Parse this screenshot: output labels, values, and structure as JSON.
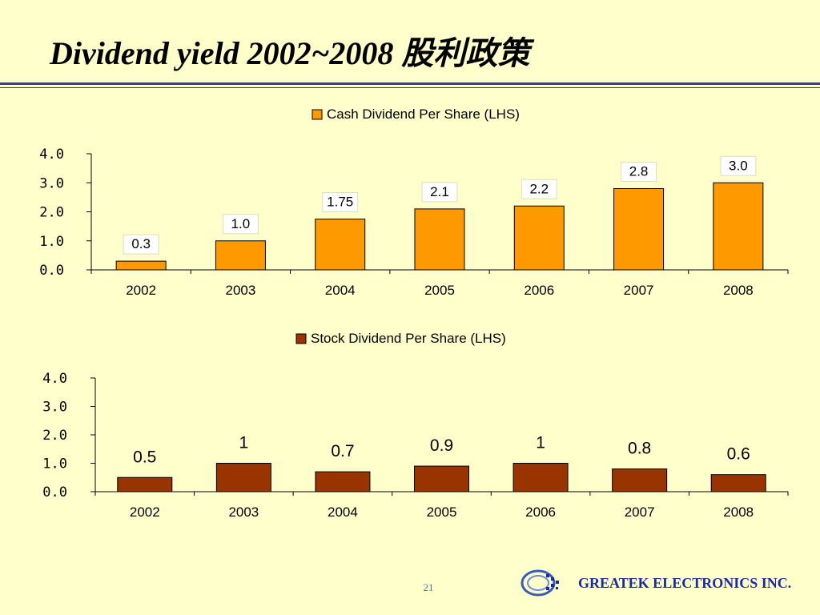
{
  "title": "Dividend yield 2002~2008  股利政策",
  "page_number": "21",
  "company": "GREATEK ELECTRONICS INC.",
  "chart_data": [
    {
      "type": "bar",
      "title": "",
      "legend": [
        "Cash Dividend Per Share (LHS)"
      ],
      "legend_placement": "top-center",
      "categories": [
        "2002",
        "2003",
        "2004",
        "2005",
        "2006",
        "2007",
        "2008"
      ],
      "series": [
        {
          "name": "Cash Dividend Per Share (LHS)",
          "values": [
            0.3,
            1.0,
            1.75,
            2.1,
            2.2,
            2.8,
            3.0
          ],
          "color": "#FF9900"
        }
      ],
      "data_labels": [
        "0.3",
        "1.0",
        "1.75",
        "2.1",
        "2.2",
        "2.8",
        "3.0"
      ],
      "y_ticks": [
        "0.0",
        "1.0",
        "2.0",
        "3.0",
        "4.0"
      ],
      "ylim": [
        0,
        4
      ],
      "grid": false
    },
    {
      "type": "bar",
      "title": "",
      "legend": [
        "Stock Dividend Per Share (LHS)"
      ],
      "legend_placement": "top-center",
      "categories": [
        "2002",
        "2003",
        "2004",
        "2005",
        "2006",
        "2007",
        "2008"
      ],
      "series": [
        {
          "name": "Stock Dividend Per Share (LHS)",
          "values": [
            0.5,
            1,
            0.7,
            0.9,
            1,
            0.8,
            0.6
          ],
          "color": "#993300"
        }
      ],
      "data_labels": [
        "0.5",
        "1",
        "0.7",
        "0.9",
        "1",
        "0.8",
        "0.6"
      ],
      "y_ticks": [
        "0.0",
        "1.0",
        "2.0",
        "3.0",
        "4.0"
      ],
      "ylim": [
        0,
        4
      ],
      "grid": false
    }
  ]
}
